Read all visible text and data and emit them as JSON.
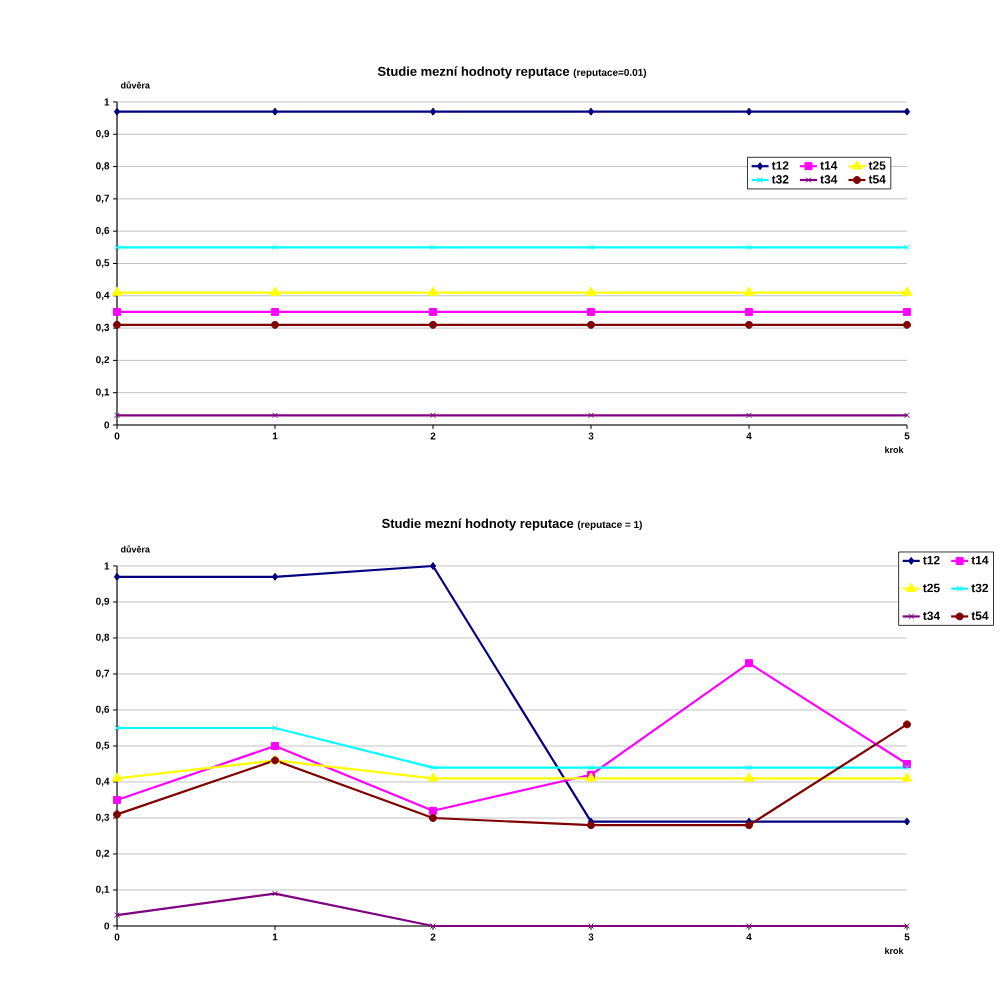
{
  "chart_data": [
    {
      "type": "line",
      "title": "Studie mezní hodnoty reputace",
      "subtitle": "(reputace=0.01)",
      "xlabel": "krok",
      "ylabel": "důvěra",
      "x": [
        0,
        1,
        2,
        3,
        4,
        5
      ],
      "xlim": [
        0,
        5
      ],
      "xticks": [
        0,
        1,
        2,
        3,
        4,
        5
      ],
      "ylim": [
        0,
        1
      ],
      "yticks": [
        0,
        {
          "value": 0.1,
          "label": "0,1"
        },
        {
          "value": 0.2,
          "label": "0,2"
        },
        {
          "value": 0.3,
          "label": "0,3"
        },
        {
          "value": 0.4,
          "label": "0,4"
        },
        {
          "value": 0.5,
          "label": "0,5"
        },
        {
          "value": 0.6,
          "label": "0,6"
        },
        {
          "value": 0.7,
          "label": "0,7"
        },
        {
          "value": 0.8,
          "label": "0,8"
        },
        {
          "value": 0.9,
          "label": "0,9"
        },
        1
      ],
      "grid": "y",
      "legend": "top right",
      "series": [
        {
          "name": "t12",
          "color": "#000080",
          "marker": "diamond",
          "values": [
            0.97,
            0.97,
            0.97,
            0.97,
            0.97,
            0.97
          ]
        },
        {
          "name": "t14",
          "color": "#ff00ff",
          "marker": "square",
          "values": [
            0.35,
            0.35,
            0.35,
            0.35,
            0.35,
            0.35
          ]
        },
        {
          "name": "t25",
          "color": "#ffff00",
          "marker": "triangle",
          "values": [
            0.41,
            0.41,
            0.41,
            0.41,
            0.41,
            0.41
          ]
        },
        {
          "name": "t32",
          "color": "#00ffff",
          "marker": "cross",
          "values": [
            0.55,
            0.55,
            0.55,
            0.55,
            0.55,
            0.55
          ]
        },
        {
          "name": "t34",
          "color": "#800080",
          "marker": "cross",
          "values": [
            0.03,
            0.03,
            0.03,
            0.03,
            0.03,
            0.03
          ]
        },
        {
          "name": "t54",
          "color": "#800000",
          "marker": "circle",
          "values": [
            0.31,
            0.31,
            0.31,
            0.31,
            0.31,
            0.31
          ]
        }
      ]
    },
    {
      "type": "line",
      "title": "Studie mezní hodnoty reputace",
      "subtitle": "(reputace = 1)",
      "xlabel": "krok",
      "ylabel": "důvěra",
      "x": [
        0,
        1,
        2,
        3,
        4,
        5
      ],
      "xlim": [
        0,
        5
      ],
      "xticks": [
        0,
        1,
        2,
        3,
        4,
        5
      ],
      "ylim": [
        0,
        1
      ],
      "yticks": [
        0,
        {
          "value": 0.1,
          "label": "0,1"
        },
        {
          "value": 0.2,
          "label": "0,2"
        },
        {
          "value": 0.3,
          "label": "0,3"
        },
        {
          "value": 0.4,
          "label": "0,4"
        },
        {
          "value": 0.5,
          "label": "0,5"
        },
        {
          "value": 0.6,
          "label": "0,6"
        },
        {
          "value": 0.7,
          "label": "0,7"
        },
        {
          "value": 0.8,
          "label": "0,8"
        },
        {
          "value": 0.9,
          "label": "0,9"
        },
        1
      ],
      "grid": "y",
      "legend": "right",
      "series": [
        {
          "name": "t12",
          "color": "#000080",
          "marker": "diamond",
          "values": [
            0.97,
            0.97,
            1,
            0.29,
            0.29,
            0.29
          ]
        },
        {
          "name": "t14",
          "color": "#ff00ff",
          "marker": "square",
          "values": [
            0.35,
            0.5,
            0.32,
            0.42,
            0.73,
            0.45
          ]
        },
        {
          "name": "t25",
          "color": "#ffff00",
          "marker": "triangle",
          "values": [
            0.41,
            0.46,
            0.41,
            0.41,
            0.41,
            0.41
          ]
        },
        {
          "name": "t32",
          "color": "#00ffff",
          "marker": "cross",
          "values": [
            0.55,
            0.55,
            0.44,
            0.44,
            0.44,
            0.44
          ]
        },
        {
          "name": "t34",
          "color": "#800080",
          "marker": "cross",
          "values": [
            0.03,
            0.09,
            0,
            0,
            0,
            0
          ]
        },
        {
          "name": "t54",
          "color": "#800000",
          "marker": "circle",
          "values": [
            0.31,
            0.46,
            0.3,
            0.28,
            0.28,
            0.56
          ]
        }
      ]
    }
  ]
}
